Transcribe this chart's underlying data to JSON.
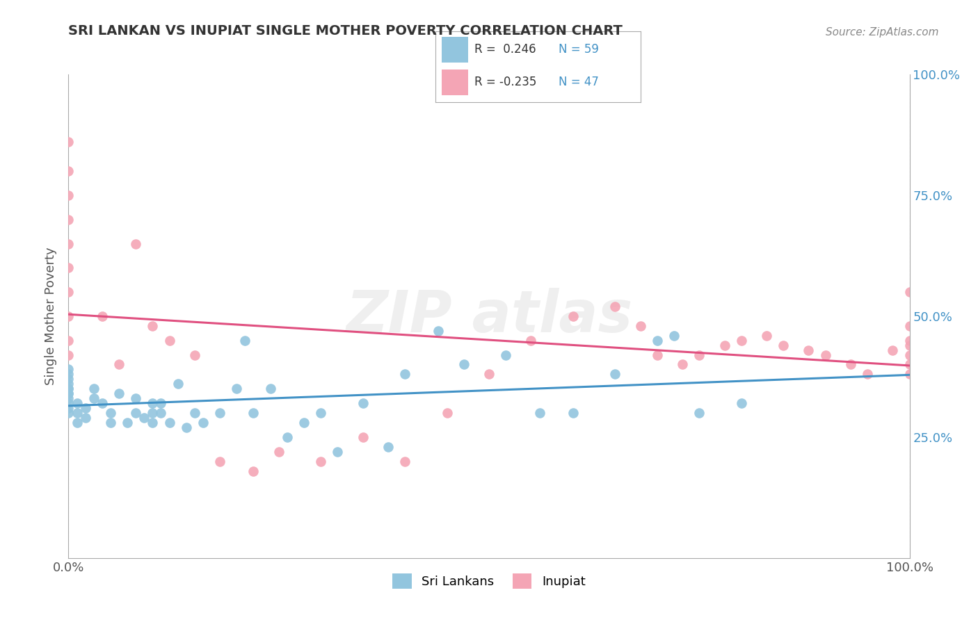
{
  "title": "SRI LANKAN VS INUPIAT SINGLE MOTHER POVERTY CORRELATION CHART",
  "source_text": "Source: ZipAtlas.com",
  "ylabel": "Single Mother Poverty",
  "legend_label1": "Sri Lankans",
  "legend_label2": "Inupiat",
  "r1": 0.246,
  "n1": 59,
  "r2": -0.235,
  "n2": 47,
  "color_blue": "#92c5de",
  "color_pink": "#f4a5b5",
  "color_blue_line": "#4292c6",
  "color_pink_line": "#e05080",
  "background_color": "#ffffff",
  "grid_color": "#cccccc",
  "blue_scatter_x": [
    0.0,
    0.0,
    0.0,
    0.0,
    0.0,
    0.0,
    0.0,
    0.0,
    0.0,
    0.0,
    0.0,
    0.0,
    0.01,
    0.01,
    0.01,
    0.02,
    0.02,
    0.03,
    0.03,
    0.04,
    0.05,
    0.05,
    0.06,
    0.07,
    0.08,
    0.08,
    0.09,
    0.1,
    0.1,
    0.1,
    0.11,
    0.11,
    0.12,
    0.13,
    0.14,
    0.15,
    0.16,
    0.18,
    0.2,
    0.21,
    0.22,
    0.24,
    0.26,
    0.28,
    0.3,
    0.32,
    0.35,
    0.38,
    0.4,
    0.44,
    0.47,
    0.52,
    0.56,
    0.6,
    0.65,
    0.7,
    0.72,
    0.75,
    0.8
  ],
  "blue_scatter_y": [
    0.3,
    0.31,
    0.32,
    0.33,
    0.34,
    0.34,
    0.35,
    0.35,
    0.36,
    0.37,
    0.38,
    0.39,
    0.28,
    0.3,
    0.32,
    0.29,
    0.31,
    0.33,
    0.35,
    0.32,
    0.28,
    0.3,
    0.34,
    0.28,
    0.3,
    0.33,
    0.29,
    0.32,
    0.28,
    0.3,
    0.3,
    0.32,
    0.28,
    0.36,
    0.27,
    0.3,
    0.28,
    0.3,
    0.35,
    0.45,
    0.3,
    0.35,
    0.25,
    0.28,
    0.3,
    0.22,
    0.32,
    0.23,
    0.38,
    0.47,
    0.4,
    0.42,
    0.3,
    0.3,
    0.38,
    0.45,
    0.46,
    0.3,
    0.32
  ],
  "pink_scatter_x": [
    0.0,
    0.0,
    0.0,
    0.0,
    0.0,
    0.0,
    0.0,
    0.0,
    0.0,
    0.0,
    0.04,
    0.06,
    0.08,
    0.1,
    0.12,
    0.15,
    0.18,
    0.22,
    0.25,
    0.3,
    0.35,
    0.4,
    0.45,
    0.5,
    0.55,
    0.6,
    0.65,
    0.68,
    0.7,
    0.73,
    0.75,
    0.78,
    0.8,
    0.83,
    0.85,
    0.88,
    0.9,
    0.93,
    0.95,
    0.98,
    1.0,
    1.0,
    1.0,
    1.0,
    1.0,
    1.0,
    1.0
  ],
  "pink_scatter_y": [
    0.42,
    0.45,
    0.5,
    0.55,
    0.6,
    0.65,
    0.7,
    0.75,
    0.8,
    0.86,
    0.5,
    0.4,
    0.65,
    0.48,
    0.45,
    0.42,
    0.2,
    0.18,
    0.22,
    0.2,
    0.25,
    0.2,
    0.3,
    0.38,
    0.45,
    0.5,
    0.52,
    0.48,
    0.42,
    0.4,
    0.42,
    0.44,
    0.45,
    0.46,
    0.44,
    0.43,
    0.42,
    0.4,
    0.38,
    0.43,
    0.55,
    0.48,
    0.44,
    0.4,
    0.38,
    0.42,
    0.45
  ]
}
